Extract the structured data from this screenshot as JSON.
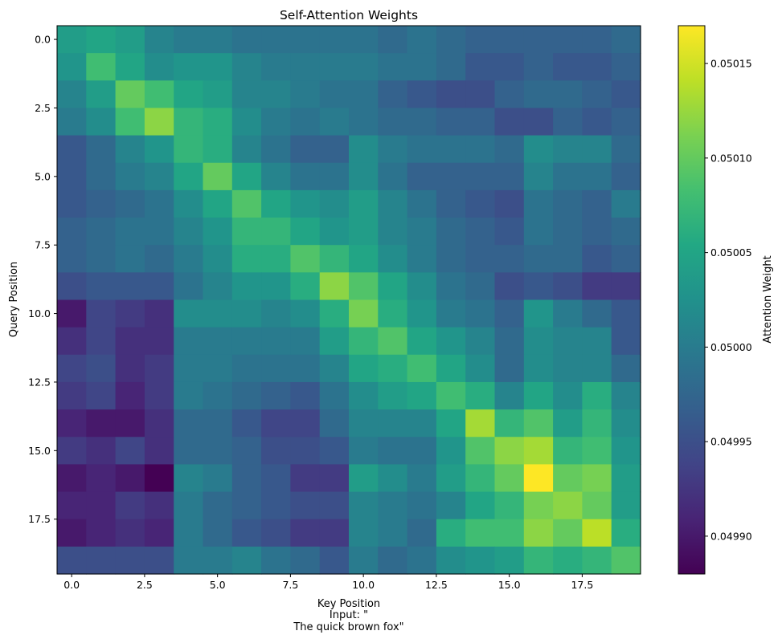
{
  "chart_data": {
    "type": "heatmap",
    "title": "Self-Attention Weights",
    "xlabel": "Key Position",
    "ylabel": "Query Position",
    "caption_lines": [
      "Input: \"",
      "The quick brown fox\""
    ],
    "colorbar_label": "Attention Weight",
    "colormap": "viridis",
    "vmin": 0.04988,
    "vmax": 0.05017,
    "xlim": [
      -0.5,
      19.5
    ],
    "ylim": [
      19.5,
      -0.5
    ],
    "x_ticks": [
      0.0,
      2.5,
      5.0,
      7.5,
      10.0,
      12.5,
      15.0,
      17.5
    ],
    "x_tick_labels": [
      "0.0",
      "2.5",
      "5.0",
      "7.5",
      "10.0",
      "12.5",
      "15.0",
      "17.5"
    ],
    "y_ticks": [
      0.0,
      2.5,
      5.0,
      7.5,
      10.0,
      12.5,
      15.0,
      17.5
    ],
    "y_tick_labels": [
      "0.0",
      "2.5",
      "5.0",
      "7.5",
      "10.0",
      "12.5",
      "15.0",
      "17.5"
    ],
    "colorbar_ticks": [
      0.0499,
      0.04995,
      0.05,
      0.05005,
      0.0501,
      0.05015
    ],
    "colorbar_tick_labels": [
      "0.04990",
      "0.04995",
      "0.05000",
      "0.05005",
      "0.05010",
      "0.05015"
    ],
    "matrix": [
      [
        0.05004,
        0.05005,
        0.05004,
        0.05001,
        0.05,
        0.05,
        0.04999,
        0.04999,
        0.04999,
        0.04999,
        0.04999,
        0.04998,
        0.04999,
        0.04998,
        0.04997,
        0.04997,
        0.04997,
        0.04997,
        0.04997,
        0.04998
      ],
      [
        0.05003,
        0.05008,
        0.05005,
        0.05002,
        0.05003,
        0.05003,
        0.05001,
        0.05,
        0.05,
        0.05,
        0.05,
        0.04999,
        0.04999,
        0.04998,
        0.04996,
        0.04996,
        0.04997,
        0.04996,
        0.04996,
        0.04997
      ],
      [
        0.05001,
        0.05004,
        0.0501,
        0.05008,
        0.05005,
        0.05004,
        0.05001,
        0.05001,
        0.05,
        0.04999,
        0.04999,
        0.04997,
        0.04996,
        0.04995,
        0.04995,
        0.04997,
        0.04998,
        0.04998,
        0.04997,
        0.04996
      ],
      [
        0.05,
        0.05002,
        0.05008,
        0.05012,
        0.05007,
        0.05006,
        0.05002,
        0.05,
        0.04999,
        0.05,
        0.04999,
        0.04998,
        0.04998,
        0.04997,
        0.04997,
        0.04995,
        0.04995,
        0.04997,
        0.04996,
        0.04997
      ],
      [
        0.04996,
        0.04998,
        0.05001,
        0.05003,
        0.05007,
        0.05006,
        0.05001,
        0.04999,
        0.04997,
        0.04997,
        0.05002,
        0.05,
        0.04999,
        0.04999,
        0.04999,
        0.04998,
        0.05002,
        0.05001,
        0.05001,
        0.04998
      ],
      [
        0.04996,
        0.04998,
        0.05,
        0.05001,
        0.05005,
        0.0501,
        0.05005,
        0.05001,
        0.04999,
        0.04999,
        0.05002,
        0.04999,
        0.04997,
        0.04997,
        0.04997,
        0.04997,
        0.05001,
        0.04999,
        0.04999,
        0.04997
      ],
      [
        0.04996,
        0.04997,
        0.04998,
        0.04999,
        0.05002,
        0.05005,
        0.05009,
        0.05005,
        0.05003,
        0.05002,
        0.05004,
        0.05001,
        0.04999,
        0.04997,
        0.04996,
        0.04995,
        0.04999,
        0.04998,
        0.04997,
        0.05
      ],
      [
        0.04997,
        0.04998,
        0.04999,
        0.04999,
        0.05001,
        0.05003,
        0.05007,
        0.05007,
        0.05005,
        0.05003,
        0.05004,
        0.05001,
        0.05,
        0.04998,
        0.04997,
        0.04996,
        0.04999,
        0.04998,
        0.04997,
        0.04998
      ],
      [
        0.04997,
        0.04998,
        0.04999,
        0.04998,
        0.05,
        0.05002,
        0.05006,
        0.05006,
        0.05009,
        0.05007,
        0.05005,
        0.05002,
        0.05,
        0.04998,
        0.04997,
        0.04997,
        0.04998,
        0.04998,
        0.04996,
        0.04997
      ],
      [
        0.04995,
        0.04996,
        0.04996,
        0.04996,
        0.04999,
        0.05001,
        0.05003,
        0.05003,
        0.05006,
        0.05012,
        0.05009,
        0.05005,
        0.05002,
        0.04999,
        0.04998,
        0.04995,
        0.04996,
        0.04995,
        0.04993,
        0.04993
      ],
      [
        0.0499,
        0.04994,
        0.04993,
        0.04992,
        0.05002,
        0.05002,
        0.05002,
        0.05001,
        0.05002,
        0.05006,
        0.05011,
        0.05006,
        0.05003,
        0.05,
        0.04999,
        0.04997,
        0.05003,
        0.05,
        0.04998,
        0.04996
      ],
      [
        0.04992,
        0.04994,
        0.04992,
        0.04992,
        0.05,
        0.05,
        0.05,
        0.05,
        0.05,
        0.05004,
        0.05007,
        0.05009,
        0.05005,
        0.05003,
        0.05001,
        0.04998,
        0.05002,
        0.05001,
        0.05001,
        0.04996
      ],
      [
        0.04994,
        0.04995,
        0.04992,
        0.04993,
        0.05,
        0.05,
        0.04999,
        0.04999,
        0.04999,
        0.05001,
        0.05005,
        0.05006,
        0.05008,
        0.05005,
        0.05002,
        0.04998,
        0.05002,
        0.05001,
        0.05001,
        0.04998
      ],
      [
        0.04993,
        0.04994,
        0.04991,
        0.04993,
        0.05,
        0.04999,
        0.04998,
        0.04997,
        0.04996,
        0.04999,
        0.05002,
        0.05004,
        0.05005,
        0.05008,
        0.05006,
        0.05001,
        0.05005,
        0.05002,
        0.05006,
        0.05001
      ],
      [
        0.04991,
        0.0499,
        0.0499,
        0.04992,
        0.04998,
        0.04998,
        0.04996,
        0.04994,
        0.04994,
        0.04998,
        0.05001,
        0.05001,
        0.05001,
        0.05005,
        0.05013,
        0.05007,
        0.05009,
        0.05004,
        0.05007,
        0.05002
      ],
      [
        0.04993,
        0.04992,
        0.04994,
        0.04992,
        0.04998,
        0.04998,
        0.04997,
        0.04995,
        0.04995,
        0.04996,
        0.05,
        0.04999,
        0.04999,
        0.05003,
        0.05009,
        0.05012,
        0.05013,
        0.05007,
        0.05008,
        0.05003
      ],
      [
        0.0499,
        0.04991,
        0.0499,
        0.04988,
        0.05001,
        0.05,
        0.04997,
        0.04996,
        0.04993,
        0.04993,
        0.05004,
        0.05002,
        0.05,
        0.05004,
        0.05007,
        0.0501,
        0.05017,
        0.0501,
        0.05011,
        0.05004
      ],
      [
        0.04991,
        0.04991,
        0.04993,
        0.04992,
        0.05,
        0.04998,
        0.04997,
        0.04996,
        0.04995,
        0.04995,
        0.05001,
        0.05,
        0.04999,
        0.05001,
        0.05005,
        0.05007,
        0.05011,
        0.05012,
        0.0501,
        0.05004
      ],
      [
        0.0499,
        0.04991,
        0.04992,
        0.04991,
        0.05,
        0.04998,
        0.04996,
        0.04995,
        0.04993,
        0.04993,
        0.05001,
        0.05,
        0.04998,
        0.05006,
        0.05008,
        0.05008,
        0.05012,
        0.0501,
        0.05014,
        0.05006
      ],
      [
        0.04995,
        0.04995,
        0.04995,
        0.04995,
        0.05,
        0.05,
        0.05001,
        0.04999,
        0.04998,
        0.04996,
        0.05,
        0.04998,
        0.04999,
        0.05002,
        0.05003,
        0.05004,
        0.05007,
        0.05006,
        0.05007,
        0.05009
      ]
    ]
  }
}
